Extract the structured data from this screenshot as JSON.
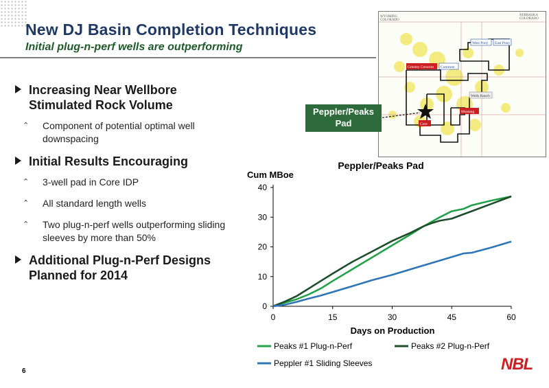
{
  "slide": {
    "title": "New DJ Basin Completion Techniques",
    "subtitle": "Initial plug-n-perf wells are outperforming",
    "page_number": "6",
    "logo": "NBL"
  },
  "bullets": [
    {
      "text": "Increasing Near Wellbore Stimulated Rock Volume",
      "subs": [
        "Component of potential optimal well downspacing"
      ]
    },
    {
      "text": "Initial Results Encouraging",
      "subs": [
        "3-well pad in Core IDP",
        "All standard length wells",
        "Two plug-n-perf wells outperforming sliding sleeves by more than 50%"
      ]
    },
    {
      "text": "Additional Plug-n-Perf Designs Planned for 2014",
      "subs": []
    }
  ],
  "map": {
    "callout": "Peppler/Peaks Pad",
    "state_labels": [
      "WYOMING",
      "COLORADO",
      "NEBRASKA",
      "COLORADO"
    ],
    "area_labels": [
      {
        "text": "West Pony",
        "color": "#1f4fa0"
      },
      {
        "text": "East Pony",
        "color": "#1f4fa0"
      },
      {
        "text": "Greeley Crescent",
        "color": "#cc1f24"
      },
      {
        "text": "Common",
        "color": "#1f4fa0"
      },
      {
        "text": "Wells Ranch",
        "color": "#555555"
      },
      {
        "text": "Mustang",
        "color": "#cc1f24"
      },
      {
        "text": "Core",
        "color": "#cc1f24"
      }
    ]
  },
  "chart_data": {
    "type": "line",
    "title": "Peppler/Peaks Pad",
    "xlabel": "Days on Production",
    "ylabel": "Cum MBoe",
    "xlim": [
      0,
      60
    ],
    "ylim": [
      0,
      40
    ],
    "xticks": [
      0,
      15,
      30,
      45,
      60
    ],
    "yticks": [
      0,
      10,
      20,
      30,
      40
    ],
    "grid": false,
    "legend_position": "bottom",
    "series": [
      {
        "name": "Peaks #1 Plug-n-Perf",
        "color": "#23a04a",
        "x": [
          0,
          3,
          6,
          9,
          12,
          15,
          20,
          25,
          30,
          35,
          38,
          40,
          42,
          45,
          48,
          50,
          55,
          60
        ],
        "y": [
          0,
          1.2,
          2.4,
          4,
          6,
          8.5,
          12.5,
          16.5,
          20.5,
          24.5,
          27,
          28.5,
          30,
          32,
          32.8,
          34,
          35.6,
          37
        ]
      },
      {
        "name": "Peaks #2 Plug-n-Perf",
        "color": "#1e4d2b",
        "x": [
          0,
          3,
          6,
          9,
          12,
          15,
          20,
          25,
          30,
          35,
          38,
          40,
          42,
          45,
          48,
          50,
          55,
          60
        ],
        "y": [
          0,
          1.6,
          3.5,
          6,
          8.5,
          11,
          15,
          18.5,
          22,
          25,
          27,
          28,
          28.8,
          29.5,
          31,
          32,
          34.5,
          37
        ]
      },
      {
        "name": "Peppler #1 Sliding Sleeves",
        "color": "#2e75b6",
        "x": [
          0,
          3,
          6,
          9,
          12,
          15,
          20,
          25,
          30,
          35,
          40,
          45,
          48,
          50,
          55,
          60
        ],
        "y": [
          0,
          0.5,
          1.5,
          2.6,
          3.6,
          4.8,
          6.8,
          8.8,
          10.6,
          12.6,
          14.6,
          16.6,
          17.8,
          18,
          19.8,
          21.8
        ]
      }
    ]
  }
}
